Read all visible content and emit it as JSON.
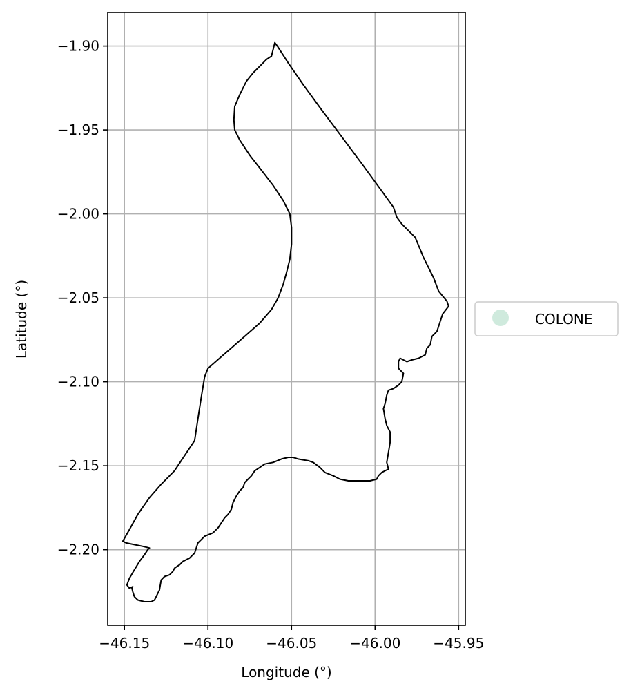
{
  "x_axis": {
    "label": "Longitude (°)",
    "min": -46.16,
    "max": -45.946,
    "ticks": [
      {
        "value": -46.15,
        "label": "−46.15"
      },
      {
        "value": -46.1,
        "label": "−46.10"
      },
      {
        "value": -46.05,
        "label": "−46.05"
      },
      {
        "value": -46.0,
        "label": "−46.00"
      },
      {
        "value": -45.95,
        "label": "−45.95"
      }
    ]
  },
  "y_axis": {
    "label": "Latitude (°)",
    "min": -2.245,
    "max": -1.88,
    "ticks": [
      {
        "value": -1.9,
        "label": "−1.90"
      },
      {
        "value": -1.95,
        "label": "−1.95"
      },
      {
        "value": -2.0,
        "label": "−2.00"
      },
      {
        "value": -2.05,
        "label": "−2.05"
      },
      {
        "value": -2.1,
        "label": "−2.10"
      },
      {
        "value": -2.15,
        "label": "−2.15"
      },
      {
        "value": -2.2,
        "label": "−2.20"
      }
    ]
  },
  "grid": true,
  "legend": {
    "placement": "outside-right",
    "entries": [
      {
        "label": "COLONE",
        "color": "#cfeadd"
      }
    ]
  },
  "region": {
    "name": "COLONE",
    "fill": "none",
    "stroke": "#000000",
    "boundary": [
      [
        -46.06,
        -1.898
      ],
      [
        -46.0585,
        -1.9
      ],
      [
        -46.052,
        -1.91
      ],
      [
        -46.043,
        -1.923
      ],
      [
        -46.032,
        -1.938
      ],
      [
        -46.02,
        -1.954
      ],
      [
        -46.008,
        -1.97
      ],
      [
        -45.997,
        -1.985
      ],
      [
        -45.989,
        -1.996
      ],
      [
        -45.987,
        -2.002
      ],
      [
        -45.984,
        -2.006
      ],
      [
        -45.976,
        -2.014
      ],
      [
        -45.971,
        -2.026
      ],
      [
        -45.965,
        -2.038
      ],
      [
        -45.962,
        -2.046
      ],
      [
        -45.957,
        -2.052
      ],
      [
        -45.956,
        -2.055
      ],
      [
        -45.9595,
        -2.0595
      ],
      [
        -45.961,
        -2.064
      ],
      [
        -45.963,
        -2.07
      ],
      [
        -45.966,
        -2.073
      ],
      [
        -45.967,
        -2.078
      ],
      [
        -45.969,
        -2.08
      ],
      [
        -45.97,
        -2.084
      ],
      [
        -45.974,
        -2.086
      ],
      [
        -45.978,
        -2.087
      ],
      [
        -45.981,
        -2.088
      ],
      [
        -45.983,
        -2.087
      ],
      [
        -45.985,
        -2.086
      ],
      [
        -45.986,
        -2.088
      ],
      [
        -45.986,
        -2.092
      ],
      [
        -45.983,
        -2.095
      ],
      [
        -45.984,
        -2.1
      ],
      [
        -45.986,
        -2.102
      ],
      [
        -45.989,
        -2.104
      ],
      [
        -45.992,
        -2.105
      ],
      [
        -45.993,
        -2.108
      ],
      [
        -45.994,
        -2.113
      ],
      [
        -45.995,
        -2.116
      ],
      [
        -45.994,
        -2.122
      ],
      [
        -45.993,
        -2.126
      ],
      [
        -45.991,
        -2.13
      ],
      [
        -45.991,
        -2.136
      ],
      [
        -45.992,
        -2.142
      ],
      [
        -45.993,
        -2.148
      ],
      [
        -45.992,
        -2.152
      ],
      [
        -45.994,
        -2.153
      ],
      [
        -45.996,
        -2.154
      ],
      [
        -45.998,
        -2.156
      ],
      [
        -45.999,
        -2.158
      ],
      [
        -46.003,
        -2.159
      ],
      [
        -46.008,
        -2.159
      ],
      [
        -46.016,
        -2.159
      ],
      [
        -46.021,
        -2.158
      ],
      [
        -46.025,
        -2.156
      ],
      [
        -46.03,
        -2.154
      ],
      [
        -46.033,
        -2.151
      ],
      [
        -46.037,
        -2.148
      ],
      [
        -46.04,
        -2.147
      ],
      [
        -46.043,
        -2.1465
      ],
      [
        -46.046,
        -2.146
      ],
      [
        -46.049,
        -2.145
      ],
      [
        -46.052,
        -2.145
      ],
      [
        -46.056,
        -2.146
      ],
      [
        -46.061,
        -2.148
      ],
      [
        -46.066,
        -2.149
      ],
      [
        -46.069,
        -2.151
      ],
      [
        -46.072,
        -2.153
      ],
      [
        -46.074,
        -2.156
      ],
      [
        -46.076,
        -2.158
      ],
      [
        -46.078,
        -2.16
      ],
      [
        -46.079,
        -2.163
      ],
      [
        -46.081,
        -2.165
      ],
      [
        -46.083,
        -2.168
      ],
      [
        -46.085,
        -2.172
      ],
      [
        -46.086,
        -2.176
      ],
      [
        -46.088,
        -2.179
      ],
      [
        -46.09,
        -2.181
      ],
      [
        -46.092,
        -2.184
      ],
      [
        -46.094,
        -2.187
      ],
      [
        -46.097,
        -2.19
      ],
      [
        -46.102,
        -2.192
      ],
      [
        -46.104,
        -2.194
      ],
      [
        -46.106,
        -2.196
      ],
      [
        -46.107,
        -2.199
      ],
      [
        -46.108,
        -2.202
      ],
      [
        -46.111,
        -2.205
      ],
      [
        -46.115,
        -2.207
      ],
      [
        -46.117,
        -2.209
      ],
      [
        -46.12,
        -2.211
      ],
      [
        -46.121,
        -2.213
      ],
      [
        -46.123,
        -2.215
      ],
      [
        -46.126,
        -2.216
      ],
      [
        -46.128,
        -2.218
      ],
      [
        -46.1285,
        -2.221
      ],
      [
        -46.129,
        -2.224
      ],
      [
        -46.13,
        -2.226
      ],
      [
        -46.131,
        -2.228
      ],
      [
        -46.132,
        -2.23
      ],
      [
        -46.134,
        -2.231
      ],
      [
        -46.138,
        -2.231
      ],
      [
        -46.142,
        -2.23
      ],
      [
        -46.144,
        -2.228
      ],
      [
        -46.145,
        -2.225
      ],
      [
        -46.1455,
        -2.223
      ],
      [
        -46.145,
        -2.222
      ],
      [
        -46.147,
        -2.223
      ],
      [
        -46.1485,
        -2.221
      ],
      [
        -46.147,
        -2.217
      ],
      [
        -46.144,
        -2.212
      ],
      [
        -46.141,
        -2.207
      ],
      [
        -46.138,
        -2.203
      ],
      [
        -46.136,
        -2.2
      ],
      [
        -46.135,
        -2.199
      ],
      [
        -46.139,
        -2.198
      ],
      [
        -46.144,
        -2.197
      ],
      [
        -46.149,
        -2.196
      ],
      [
        -46.151,
        -2.195
      ],
      [
        -46.147,
        -2.188
      ],
      [
        -46.142,
        -2.179
      ],
      [
        -46.135,
        -2.169
      ],
      [
        -46.128,
        -2.161
      ],
      [
        -46.12,
        -2.153
      ],
      [
        -46.114,
        -2.144
      ],
      [
        -46.108,
        -2.135
      ],
      [
        -46.106,
        -2.122
      ],
      [
        -46.104,
        -2.109
      ],
      [
        -46.102,
        -2.097
      ],
      [
        -46.1,
        -2.092
      ],
      [
        -46.092,
        -2.085
      ],
      [
        -46.085,
        -2.079
      ],
      [
        -46.077,
        -2.072
      ],
      [
        -46.069,
        -2.065
      ],
      [
        -46.062,
        -2.057
      ],
      [
        -46.058,
        -2.05
      ],
      [
        -46.055,
        -2.042
      ],
      [
        -46.053,
        -2.035
      ],
      [
        -46.051,
        -2.027
      ],
      [
        -46.05,
        -2.018
      ],
      [
        -46.05,
        -2.008
      ],
      [
        -46.051,
        -2.0
      ],
      [
        -46.055,
        -1.992
      ],
      [
        -46.061,
        -1.983
      ],
      [
        -46.068,
        -1.974
      ],
      [
        -46.075,
        -1.965
      ],
      [
        -46.081,
        -1.956
      ],
      [
        -46.084,
        -1.95
      ],
      [
        -46.0845,
        -1.944
      ],
      [
        -46.084,
        -1.936
      ],
      [
        -46.081,
        -1.929
      ],
      [
        -46.077,
        -1.921
      ],
      [
        -46.073,
        -1.916
      ],
      [
        -46.069,
        -1.912
      ],
      [
        -46.065,
        -1.908
      ],
      [
        -46.062,
        -1.906
      ],
      [
        -46.06,
        -1.898
      ]
    ]
  }
}
